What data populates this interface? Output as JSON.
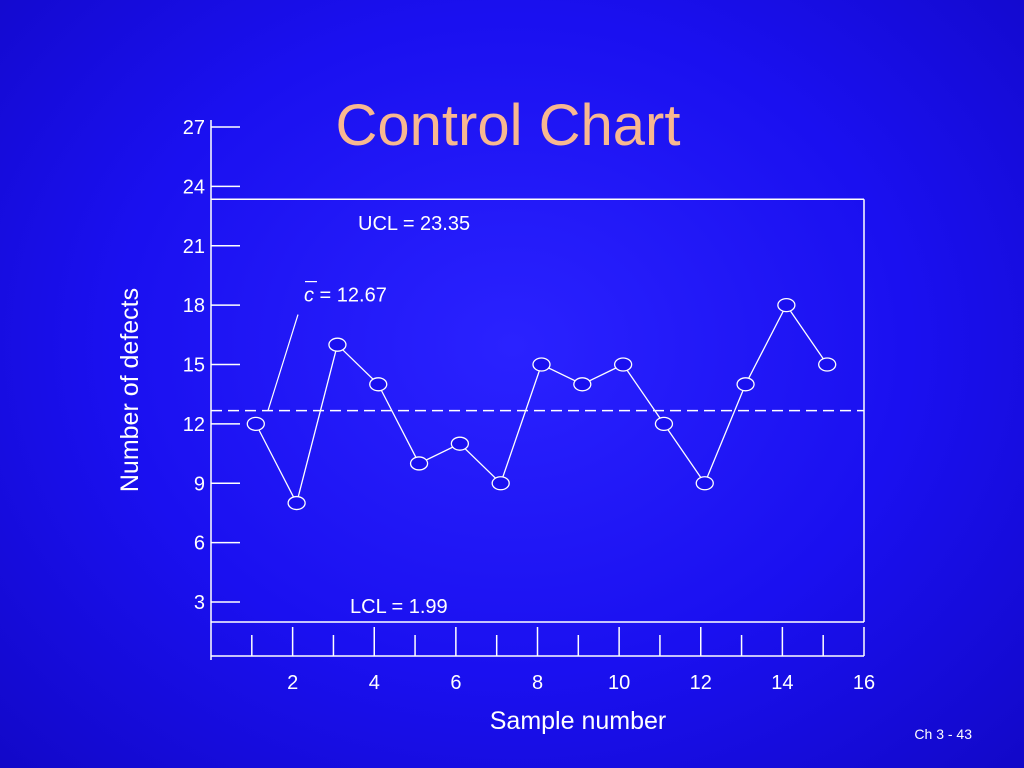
{
  "slide": {
    "title": "Control Chart",
    "number": "Ch 3 - 43"
  },
  "chart_data": {
    "type": "line",
    "xlabel": "Sample number",
    "ylabel": "Number of defects",
    "xlim": [
      0,
      16
    ],
    "ylim": [
      1.5,
      27
    ],
    "x_ticks": [
      2,
      4,
      6,
      8,
      10,
      12,
      14,
      16
    ],
    "y_ticks": [
      3,
      6,
      9,
      12,
      15,
      18,
      21,
      24,
      27
    ],
    "x": [
      1,
      2,
      3,
      4,
      5,
      6,
      7,
      8,
      9,
      10,
      11,
      12,
      13,
      14,
      15
    ],
    "series": [
      {
        "values": [
          12,
          8,
          16,
          14,
          10,
          11,
          9,
          15,
          14,
          15,
          12,
          9,
          14,
          18,
          15
        ]
      }
    ],
    "control_limits": {
      "ucl": 23.35,
      "center": 12.67,
      "lcl": 1.99
    },
    "annotations": {
      "ucl_label": "UCL = 23.35",
      "center_symbol": "c",
      "center_label": " = 12.67",
      "lcl_label": "LCL = 1.99"
    },
    "grid": false
  }
}
